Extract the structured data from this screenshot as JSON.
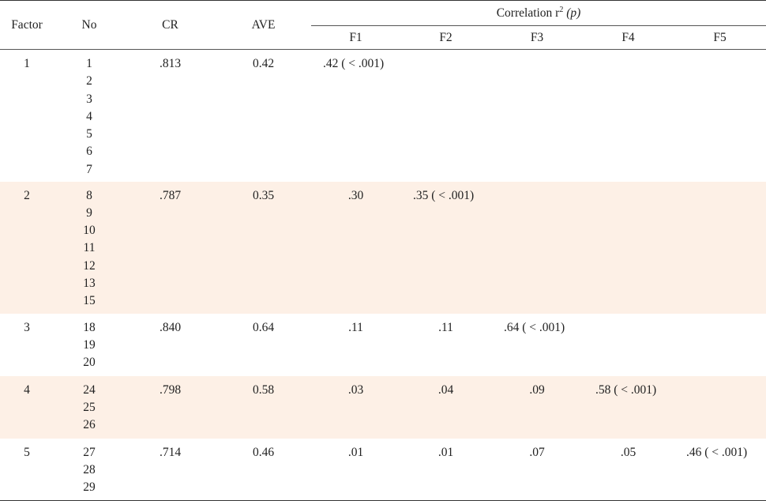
{
  "header": {
    "factor": "Factor",
    "no": "No",
    "cr": "CR",
    "ave": "AVE",
    "correlation_prefix": "Correlation r",
    "correlation_sup": "2",
    "correlation_p": "(p)",
    "f_columns": [
      "F1",
      "F2",
      "F3",
      "F4",
      "F5"
    ]
  },
  "rows": [
    {
      "factor": "1",
      "items": [
        "1",
        "2",
        "3",
        "4",
        "5",
        "6",
        "7"
      ],
      "cr": ".813",
      "ave": "0.42",
      "corr": [
        ".42 ( < .001)",
        "",
        "",
        "",
        ""
      ]
    },
    {
      "factor": "2",
      "items": [
        "8",
        "9",
        "10",
        "11",
        "12",
        "13",
        "15"
      ],
      "cr": ".787",
      "ave": "0.35",
      "corr": [
        ".30",
        ".35 ( < .001)",
        "",
        "",
        ""
      ]
    },
    {
      "factor": "3",
      "items": [
        "18",
        "19",
        "20"
      ],
      "cr": ".840",
      "ave": "0.64",
      "corr": [
        ".11",
        ".11",
        ".64 ( < .001)",
        "",
        ""
      ]
    },
    {
      "factor": "4",
      "items": [
        "24",
        "25",
        "26"
      ],
      "cr": ".798",
      "ave": "0.58",
      "corr": [
        ".03",
        ".04",
        ".09",
        ".58 ( < .001)",
        ""
      ]
    },
    {
      "factor": "5",
      "items": [
        "27",
        "28",
        "29"
      ],
      "cr": ".714",
      "ave": "0.46",
      "corr": [
        ".01",
        ".01",
        ".07",
        ".05",
        ".46 ( < .001)"
      ]
    }
  ]
}
